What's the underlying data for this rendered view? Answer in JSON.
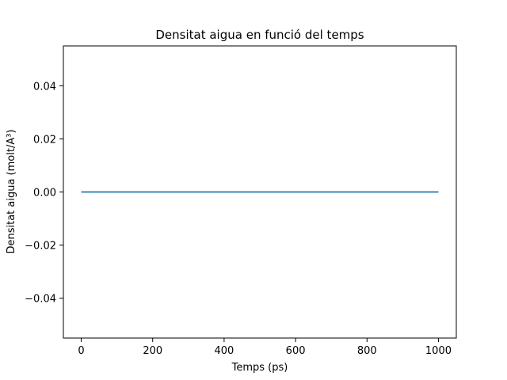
{
  "chart_data": {
    "type": "line",
    "title": "Densitat aigua en funció del temps",
    "xlabel": "Temps (ps)",
    "ylabel": "Densitat aigua (molt/A³)",
    "xlim": [
      -50,
      1050
    ],
    "ylim": [
      -0.055,
      0.055
    ],
    "xticks": [
      0,
      200,
      400,
      600,
      800,
      1000
    ],
    "xtick_labels": [
      "0",
      "200",
      "400",
      "600",
      "800",
      "1000"
    ],
    "yticks": [
      -0.04,
      -0.02,
      0.0,
      0.02,
      0.04
    ],
    "ytick_labels": [
      "−0.04",
      "−0.02",
      "0.00",
      "0.02",
      "0.04"
    ],
    "grid": false,
    "series": [
      {
        "color": "#1f77b4",
        "x": [
          0,
          1000
        ],
        "y": [
          0.0,
          0.0
        ]
      }
    ]
  }
}
